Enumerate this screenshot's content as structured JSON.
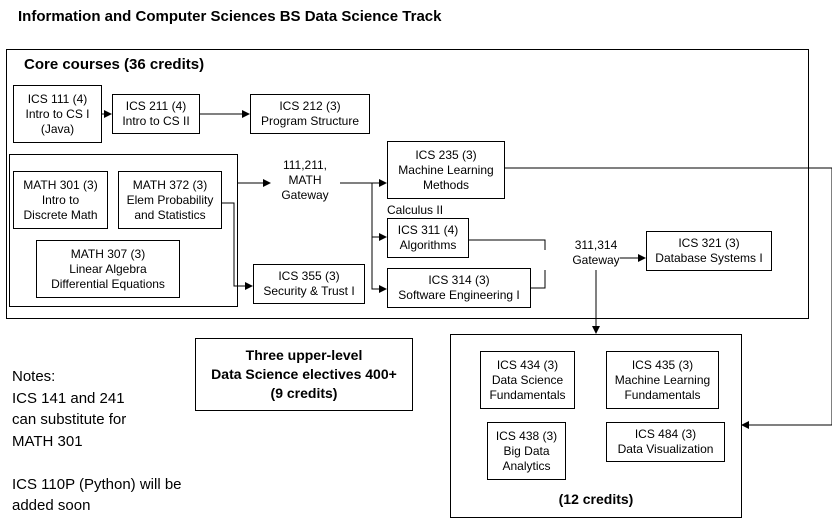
{
  "title": "Information and Computer Sciences BS Data Science Track",
  "core": {
    "heading": "Core courses (36 credits)",
    "ics111": [
      "ICS 111 (4)",
      "Intro to CS I",
      "(Java)"
    ],
    "ics211": [
      "ICS 211 (4)",
      "Intro to CS II"
    ],
    "ics212": [
      "ICS 212 (3)",
      "Program Structure"
    ],
    "math301": [
      "MATH 301 (3)",
      "Intro to",
      "Discrete Math"
    ],
    "math372": [
      "MATH 372 (3)",
      "Elem Probability",
      "and Statistics"
    ],
    "math307": [
      "MATH 307 (3)",
      "Linear Algebra",
      "Differential Equations"
    ],
    "gateway1": [
      "111,211,",
      "MATH",
      "Gateway"
    ],
    "ics235": [
      "ICS 235 (3)",
      "Machine Learning",
      "Methods"
    ],
    "calculus": "Calculus II",
    "ics311": [
      "ICS 311 (4)",
      "Algorithms"
    ],
    "ics314": [
      "ICS 314 (3)",
      "Software Engineering I"
    ],
    "ics355": [
      "ICS 355 (3)",
      "Security & Trust I"
    ],
    "gateway2": [
      "311,314",
      "Gateway"
    ],
    "ics321": [
      "ICS 321 (3)",
      "Database Systems I"
    ]
  },
  "electives": [
    "Three upper-level",
    "Data Science electives 400+",
    "(9 credits)"
  ],
  "track": {
    "ics434": [
      "ICS 434 (3)",
      "Data Science",
      "Fundamentals"
    ],
    "ics435": [
      "ICS 435 (3)",
      "Machine Learning",
      "Fundamentals"
    ],
    "ics438": [
      "ICS 438 (3)",
      "Big Data",
      "Analytics"
    ],
    "ics484": [
      "ICS 484 (3)",
      "Data Visualization"
    ],
    "credits": "(12 credits)"
  },
  "notes": [
    "Notes:",
    "ICS 141 and 241",
    "can substitute for",
    "MATH 301",
    "",
    "ICS 110P (Python) will be",
    "added soon"
  ]
}
